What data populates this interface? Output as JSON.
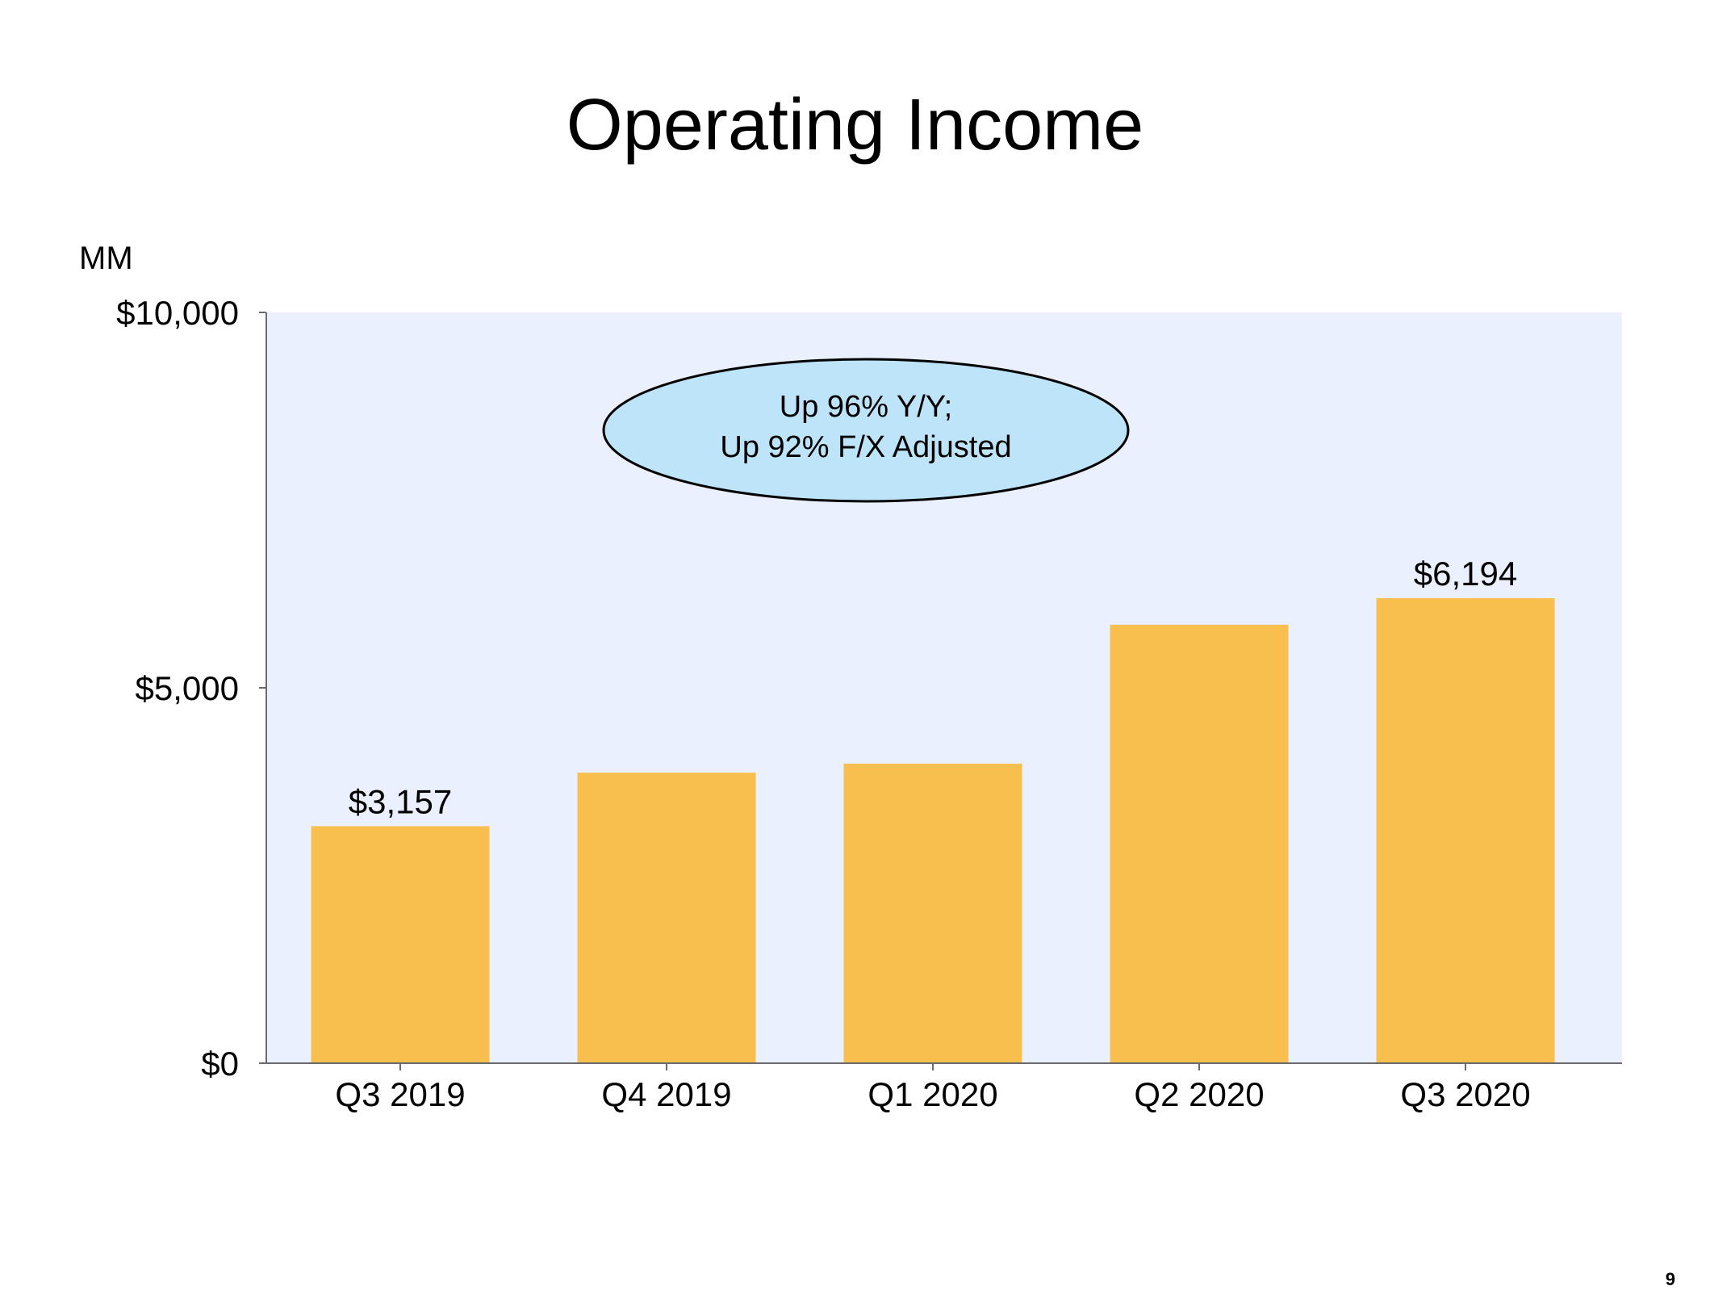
{
  "slide": {
    "title": "Operating Income",
    "page_number": "9"
  },
  "chart_data": {
    "type": "bar",
    "title": "Operating Income",
    "unit_label": "MM",
    "categories": [
      "Q3 2019",
      "Q4 2019",
      "Q1 2020",
      "Q2 2020",
      "Q3 2020"
    ],
    "values": [
      3157,
      3870,
      3990,
      5840,
      6194
    ],
    "data_labels": [
      "$3,157",
      "",
      "",
      "",
      "$6,194"
    ],
    "ylim": [
      0,
      10000
    ],
    "yticks": [
      0,
      5000,
      10000
    ],
    "ytick_labels": [
      "$0",
      "$5,000",
      "$10,000"
    ],
    "xlabel": "",
    "ylabel": "",
    "grid": false,
    "legend": "none",
    "colors": {
      "bar": "#F8BF4F",
      "plot_background": "#EAF0FD",
      "axis": "#6B6B6B",
      "callout_fill": "#BDE4F8",
      "callout_border": "#000000"
    },
    "annotation": {
      "lines": [
        "Up 96% Y/Y;",
        "Up 92% F/X Adjusted"
      ]
    }
  }
}
